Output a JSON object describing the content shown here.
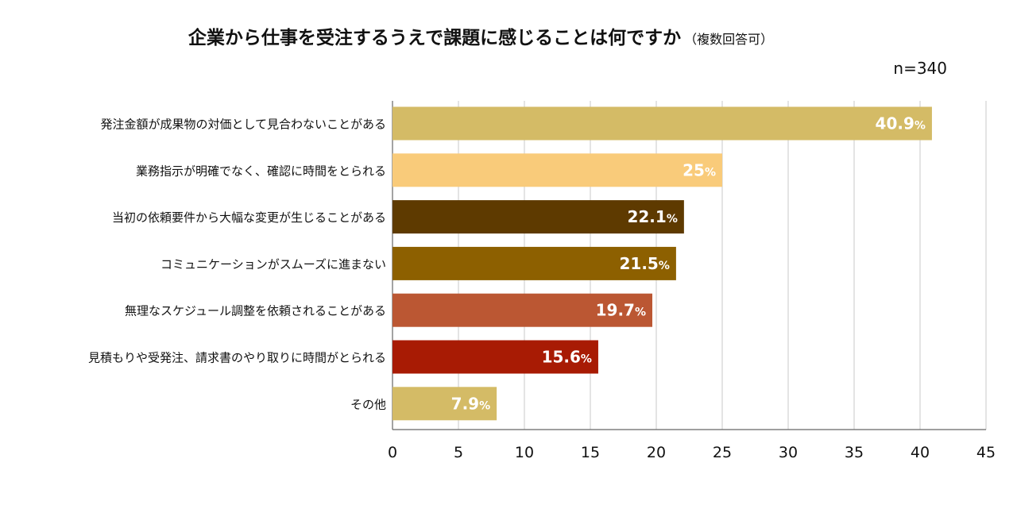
{
  "chart_data": {
    "type": "bar",
    "orientation": "horizontal",
    "title": "企業から仕事を受注するうえで課題に感じることは何ですか",
    "title_note": "（複数回答可）",
    "sample_size": "n=340",
    "categories": [
      "発注金額が成果物の対価として見合わないことがある",
      "業務指示が明確でなく、確認に時間をとられる",
      "当初の依頼要件から大幅な変更が生じることがある",
      "コミュニケーションがスムーズに進まない",
      "無理なスケジュール調整を依頼されることがある",
      "見積もりや受発注、請求書のやり取りに時間がとられる",
      "その他"
    ],
    "values": [
      40.9,
      25,
      22.1,
      21.5,
      19.7,
      15.6,
      7.9
    ],
    "value_labels": [
      "40.9",
      "25",
      "22.1",
      "21.5",
      "19.7",
      "15.6",
      "7.9"
    ],
    "unit": "%",
    "colors": [
      "#d4bb66",
      "#f9cb7a",
      "#5e3a00",
      "#8d6000",
      "#bb5733",
      "#a81b04",
      "#d4bb66"
    ],
    "xlim": [
      0,
      45
    ],
    "xticks": [
      0,
      5,
      10,
      15,
      20,
      25,
      30,
      35,
      40,
      45
    ],
    "grid": true
  }
}
